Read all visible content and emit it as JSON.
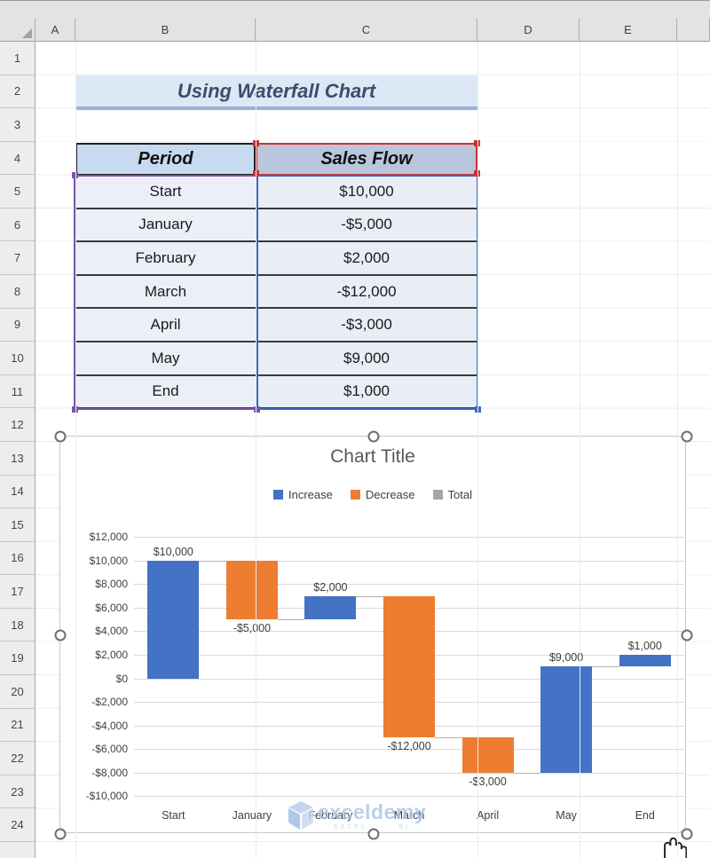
{
  "spreadsheet": {
    "column_headers": [
      "A",
      "B",
      "C",
      "D",
      "E",
      ""
    ],
    "row_numbers": [
      "1",
      "2",
      "3",
      "4",
      "5",
      "6",
      "7",
      "8",
      "9",
      "10",
      "11",
      "12",
      "13",
      "14",
      "15",
      "16",
      "17",
      "18",
      "19",
      "20",
      "21",
      "22",
      "23",
      "24",
      ""
    ]
  },
  "banner": {
    "title": "Using Waterfall Chart"
  },
  "table": {
    "headers": [
      "Period",
      "Sales Flow"
    ],
    "rows": [
      [
        "Start",
        "$10,000"
      ],
      [
        "January",
        "-$5,000"
      ],
      [
        "February",
        "$2,000"
      ],
      [
        "March",
        "-$12,000"
      ],
      [
        "April",
        "-$3,000"
      ],
      [
        "May",
        "$9,000"
      ],
      [
        "End",
        "$1,000"
      ]
    ]
  },
  "selection": {
    "series_name_range_color": "#cf3232",
    "category_range_color": "#7a56a8",
    "value_range_color": "#3a6bc4"
  },
  "chart_data": {
    "type": "bar",
    "subtype": "waterfall",
    "title": "Chart Title",
    "legend": [
      {
        "label": "Increase",
        "color": "#4472C4"
      },
      {
        "label": "Decrease",
        "color": "#ED7D31"
      },
      {
        "label": "Total",
        "color": "#A5A5A5"
      }
    ],
    "legend_position": "top",
    "grid": true,
    "categories": [
      "Start",
      "January",
      "February",
      "March",
      "April",
      "May",
      "End"
    ],
    "values": [
      10000,
      -5000,
      2000,
      -12000,
      -3000,
      9000,
      1000
    ],
    "cumulative": [
      10000,
      5000,
      7000,
      -5000,
      -8000,
      1000,
      2000
    ],
    "data_labels": [
      "$10,000",
      "-$5,000",
      "$2,000",
      "-$12,000",
      "-$3,000",
      "$9,000",
      "$1,000"
    ],
    "y_ticks": [
      "$12,000",
      "$10,000",
      "$8,000",
      "$6,000",
      "$4,000",
      "$2,000",
      "$0",
      "-$2,000",
      "-$4,000",
      "-$6,000",
      "-$8,000",
      "-$10,000"
    ],
    "ylim": [
      -10000,
      12000
    ],
    "y_step": 2000,
    "xlabel": "",
    "ylabel": "",
    "colors": {
      "increase": "#4472C4",
      "decrease": "#ED7D31",
      "total": "#A5A5A5",
      "gridline": "#D9D9D9",
      "connector": "#B0B0B0",
      "axis_text": "#404040",
      "title_text": "#595959"
    }
  },
  "watermark": {
    "text": "exceldemy",
    "tagline": "EXCEL · · · BI"
  }
}
